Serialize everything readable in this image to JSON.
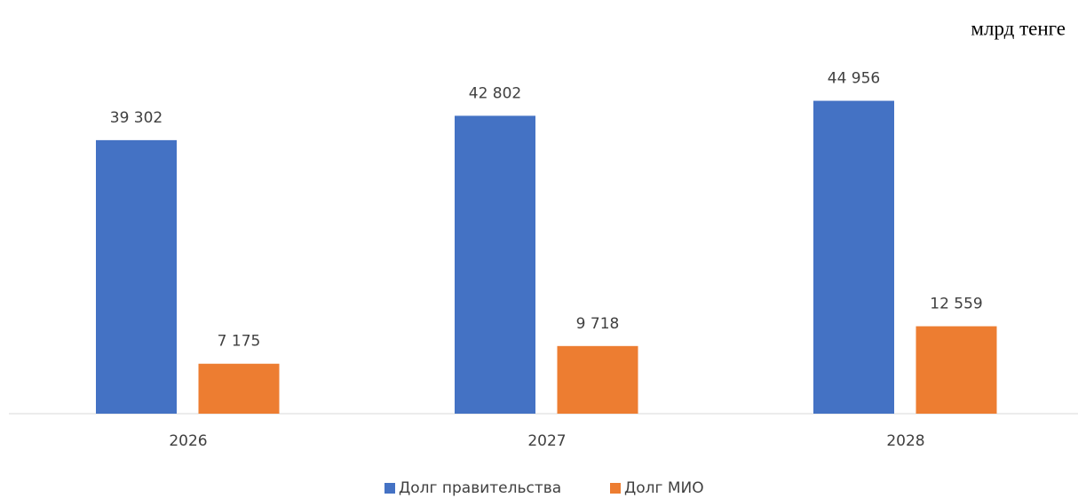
{
  "chart_data": {
    "type": "bar",
    "title": "млрд тенге",
    "categories": [
      "2026",
      "2027",
      "2028"
    ],
    "series": [
      {
        "name": "Долг правительства",
        "color": "#4472c4",
        "values": [
          39302,
          42802,
          44956
        ],
        "value_labels": [
          "39 302",
          "42 802",
          "44 956"
        ]
      },
      {
        "name": "Долг МИО",
        "color": "#ed7d31",
        "values": [
          7175,
          9718,
          12559
        ],
        "value_labels": [
          "7 175",
          "9 718",
          "12 559"
        ]
      }
    ],
    "ylim": [
      0,
      50000
    ],
    "legend": "bottom"
  }
}
